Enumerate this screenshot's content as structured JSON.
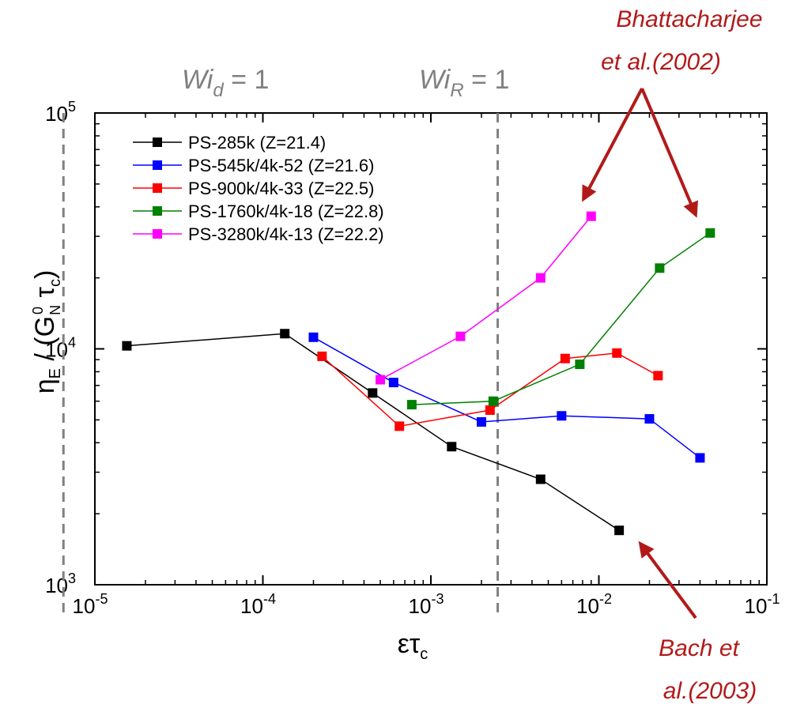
{
  "chart_data": {
    "type": "line",
    "xscale": "log",
    "yscale": "log",
    "xlim": [
      1e-05,
      0.1
    ],
    "ylim": [
      1000,
      100000
    ],
    "grid": false,
    "legend_position": "top-left",
    "xlabel": "ε̇τc",
    "ylabel": "ηE / (G0N τc)",
    "x_ticks": [
      {
        "value": 1e-05,
        "base": "10",
        "exp": "-5"
      },
      {
        "value": 0.0001,
        "base": "10",
        "exp": "-4"
      },
      {
        "value": 0.001,
        "base": "10",
        "exp": "-3"
      },
      {
        "value": 0.01,
        "base": "10",
        "exp": "-2"
      },
      {
        "value": 0.1,
        "base": "10",
        "exp": "-1"
      }
    ],
    "y_ticks": [
      {
        "value": 1000,
        "base": "10",
        "exp": "3"
      },
      {
        "value": 10000,
        "base": "10",
        "exp": "4"
      },
      {
        "value": 100000,
        "base": "10",
        "exp": "5"
      }
    ],
    "series": [
      {
        "name": "PS-285k (Z=21.4)",
        "color": "#000000",
        "x": [
          1.55e-05,
          0.000135,
          0.00045,
          0.00133,
          0.0045,
          0.0132
        ],
        "y": [
          10300,
          11600,
          6500,
          3850,
          2800,
          1700
        ]
      },
      {
        "name": "PS-545k/4k-52 (Z=21.6)",
        "color": "#0000ff",
        "x": [
          0.0002,
          0.0006,
          0.002,
          0.006,
          0.02,
          0.04
        ],
        "y": [
          11200,
          7200,
          4900,
          5200,
          5050,
          3450
        ]
      },
      {
        "name": "PS-900k/4k-33 (Z=22.5)",
        "color": "#ff0000",
        "x": [
          0.000225,
          0.00065,
          0.00225,
          0.0063,
          0.0128,
          0.0225
        ],
        "y": [
          9300,
          4700,
          5500,
          9100,
          9600,
          7700
        ]
      },
      {
        "name": "PS-1760k/4k-18 (Z=22.8)",
        "color": "#008000",
        "x": [
          0.00077,
          0.00235,
          0.0077,
          0.023,
          0.046
        ],
        "y": [
          5800,
          6000,
          8600,
          22000,
          31000
        ]
      },
      {
        "name": "PS-3280k/4k-13 (Z=22.2)",
        "color": "#ff00ff",
        "x": [
          0.0005,
          0.0015,
          0.0045,
          0.009
        ],
        "y": [
          7400,
          11300,
          20000,
          36500
        ]
      }
    ],
    "reference_lines": [
      {
        "x": 6.5e-06,
        "label_main": "Wi",
        "label_sub": "d",
        "label_rest": " = 1"
      },
      {
        "x": 0.0025,
        "label_main": "Wi",
        "label_sub": "R",
        "label_rest": " = 1"
      }
    ],
    "annotations": [
      {
        "lines": [
          "Bhattacharjee",
          "et al.(2002)"
        ],
        "color": "#b21a1a"
      },
      {
        "lines": [
          "Bach et",
          "al.(2003)"
        ],
        "color": "#b21a1a"
      }
    ]
  }
}
